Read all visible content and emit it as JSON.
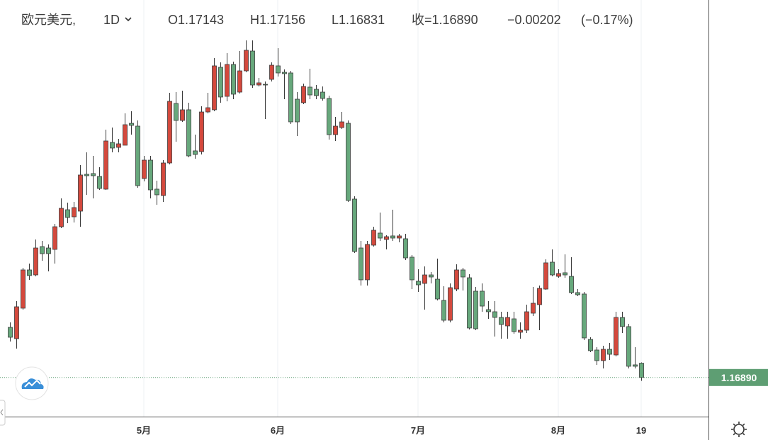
{
  "header": {
    "symbol": "欧元美元,",
    "interval": "1D",
    "open": "O1.17143",
    "high": "H1.17156",
    "low": "L1.16831",
    "close": "收=1.16890",
    "change": "−0.00202",
    "change_pct": "(−0.17%)"
  },
  "chart_data": {
    "type": "candlestick",
    "categories": [
      null,
      null,
      null,
      null,
      null,
      null,
      null,
      null,
      null,
      null,
      null,
      null,
      null,
      null,
      null,
      null,
      null,
      null,
      null,
      null,
      null,
      "5月",
      null,
      null,
      null,
      null,
      null,
      null,
      null,
      null,
      null,
      null,
      null,
      null,
      null,
      null,
      null,
      null,
      null,
      null,
      null,
      null,
      "6月",
      null,
      null,
      null,
      null,
      null,
      null,
      null,
      null,
      null,
      null,
      null,
      null,
      null,
      null,
      null,
      null,
      null,
      null,
      null,
      null,
      null,
      "7月",
      null,
      null,
      null,
      null,
      null,
      null,
      null,
      null,
      null,
      null,
      null,
      null,
      null,
      null,
      null,
      null,
      null,
      null,
      null,
      null,
      null,
      "8月",
      null,
      null,
      null,
      null,
      null,
      null,
      null,
      null,
      null,
      null,
      null,
      null,
      "19"
    ],
    "open": [
      1.17775,
      1.17575,
      1.18113,
      1.18788,
      1.187,
      1.192,
      1.19175,
      1.1915,
      1.1955,
      1.1985,
      1.19725,
      1.19825,
      1.20475,
      1.20488,
      1.20438,
      1.20213,
      1.21038,
      1.2095,
      1.20988,
      1.21375,
      1.21325,
      1.204,
      1.20725,
      1.20213,
      1.201,
      1.20675,
      1.21725,
      1.21425,
      1.21613,
      1.20888,
      1.20875,
      1.21575,
      1.21613,
      1.22363,
      1.2185,
      1.22413,
      1.21925,
      1.223,
      1.2265,
      1.2205,
      1.22063,
      1.2215,
      1.22388,
      1.22275,
      1.22263,
      1.218,
      1.21738,
      1.22013,
      1.21975,
      1.21925,
      1.21813,
      1.21175,
      1.213,
      1.21375,
      1.20038,
      1.19175,
      1.18613,
      1.19225,
      1.19438,
      1.19325,
      1.19388,
      1.1935,
      1.19338,
      1.19013,
      1.18588,
      1.1855,
      1.187,
      1.18625,
      1.1825,
      1.179,
      1.1845,
      1.18788,
      1.1865,
      1.18413,
      1.18413,
      1.18088,
      1.1805,
      1.1795,
      1.178,
      1.17925,
      1.17688,
      1.17725,
      1.18025,
      1.18175,
      1.1845,
      1.18925,
      1.18675,
      1.18738,
      1.18675,
      1.18388,
      1.18363,
      1.17563,
      1.17375,
      1.17188,
      1.17388,
      1.17288,
      1.1795,
      1.17788,
      1.17113,
      1.17143
    ],
    "high": [
      1.17863,
      1.18238,
      1.18825,
      1.189,
      1.19325,
      1.193,
      1.19238,
      1.196,
      1.2005,
      1.19975,
      1.19988,
      1.20638,
      1.20863,
      1.208,
      1.206,
      1.21263,
      1.213,
      1.211,
      1.2155,
      1.21588,
      1.21425,
      1.208,
      1.208,
      1.20363,
      1.20725,
      1.21913,
      1.21925,
      1.2195,
      1.21738,
      1.21175,
      1.21675,
      1.21913,
      1.22525,
      1.2245,
      1.22613,
      1.22463,
      1.2265,
      1.22838,
      1.22838,
      1.22175,
      1.22113,
      1.2245,
      1.227,
      1.22325,
      1.223,
      1.21925,
      1.22075,
      1.22338,
      1.2205,
      1.22025,
      1.21863,
      1.21488,
      1.21575,
      1.21425,
      1.20088,
      1.193,
      1.193,
      1.1955,
      1.198,
      1.194,
      1.1985,
      1.19425,
      1.19425,
      1.1905,
      1.188,
      1.1885,
      1.1875,
      1.18988,
      1.185,
      1.1855,
      1.18888,
      1.18825,
      1.18713,
      1.18488,
      1.1855,
      1.18238,
      1.18238,
      1.1805,
      1.1805,
      1.1805,
      1.17863,
      1.18175,
      1.18488,
      1.18513,
      1.18975,
      1.1915,
      1.188,
      1.19063,
      1.19013,
      1.1845,
      1.184,
      1.176,
      1.17425,
      1.1745,
      1.175,
      1.1805,
      1.1805,
      1.17838,
      1.17425,
      1.17156
    ],
    "low": [
      1.17525,
      1.174,
      1.18088,
      1.18613,
      1.18675,
      1.1895,
      1.18763,
      1.189,
      1.19525,
      1.19613,
      1.19625,
      1.1955,
      1.20113,
      1.2005,
      1.202,
      1.202,
      1.20863,
      1.20863,
      1.20988,
      1.21175,
      1.20238,
      1.2035,
      1.2005,
      1.19938,
      1.19988,
      1.2065,
      1.2105,
      1.214,
      1.20775,
      1.2075,
      1.20825,
      1.2155,
      1.21588,
      1.21738,
      1.21763,
      1.218,
      1.219,
      1.22275,
      1.22,
      1.22025,
      1.2145,
      1.22113,
      1.222,
      1.218,
      1.21363,
      1.2115,
      1.21713,
      1.218,
      1.218,
      1.21775,
      1.21088,
      1.21063,
      1.21275,
      1.19988,
      1.19088,
      1.18513,
      1.18513,
      1.192,
      1.193,
      1.1915,
      1.193,
      1.19275,
      1.18963,
      1.1845,
      1.184,
      1.18088,
      1.1855,
      1.1825,
      1.17863,
      1.17863,
      1.18413,
      1.18425,
      1.17738,
      1.17725,
      1.1805,
      1.17925,
      1.17613,
      1.17575,
      1.17575,
      1.17663,
      1.17575,
      1.17675,
      1.17975,
      1.17725,
      1.18438,
      1.18675,
      1.1865,
      1.1865,
      1.18363,
      1.18325,
      1.1755,
      1.17338,
      1.17113,
      1.1705,
      1.172,
      1.17263,
      1.17675,
      1.1705,
      1.1705,
      1.16831
    ],
    "close": [
      1.176,
      1.18138,
      1.18788,
      1.18688,
      1.19175,
      1.19075,
      1.19075,
      1.1955,
      1.19875,
      1.19713,
      1.19888,
      1.20463,
      1.2045,
      1.2045,
      1.20225,
      1.21063,
      1.20938,
      1.21013,
      1.2135,
      1.21338,
      1.20275,
      1.20725,
      1.202,
      1.20113,
      1.20675,
      1.21763,
      1.21425,
      1.21613,
      1.208,
      1.20825,
      1.21575,
      1.2165,
      1.22388,
      1.21838,
      1.22413,
      1.21888,
      1.223,
      1.22663,
      1.2205,
      1.22088,
      1.2205,
      1.224,
      1.22263,
      1.2225,
      1.214,
      1.214,
      1.22025,
      1.21875,
      1.21863,
      1.21813,
      1.21175,
      1.21325,
      1.214,
      1.20013,
      1.19113,
      1.18613,
      1.19238,
      1.19488,
      1.1935,
      1.19375,
      1.1935,
      1.19388,
      1.19,
      1.18613,
      1.18525,
      1.187,
      1.18663,
      1.18275,
      1.179,
      1.18475,
      1.18788,
      1.18663,
      1.17763,
      1.1775,
      1.1815,
      1.1805,
      1.1795,
      1.17825,
      1.1795,
      1.177,
      1.17725,
      1.1805,
      1.182,
      1.18463,
      1.18913,
      1.187,
      1.18725,
      1.187,
      1.18388,
      1.1835,
      1.17588,
      1.17363,
      1.17188,
      1.17388,
      1.173,
      1.1795,
      1.17788,
      1.17088,
      1.17088,
      1.1689
    ],
    "up_color": "#d4493d",
    "down_color": "#67a87c",
    "wick_color": "#3a3a3a",
    "ylim": [
      1.162,
      1.2355
    ],
    "last_price": {
      "value": 1.1689,
      "label": "1.16890"
    },
    "last_price_color": "#5e9e73",
    "grid": true
  }
}
